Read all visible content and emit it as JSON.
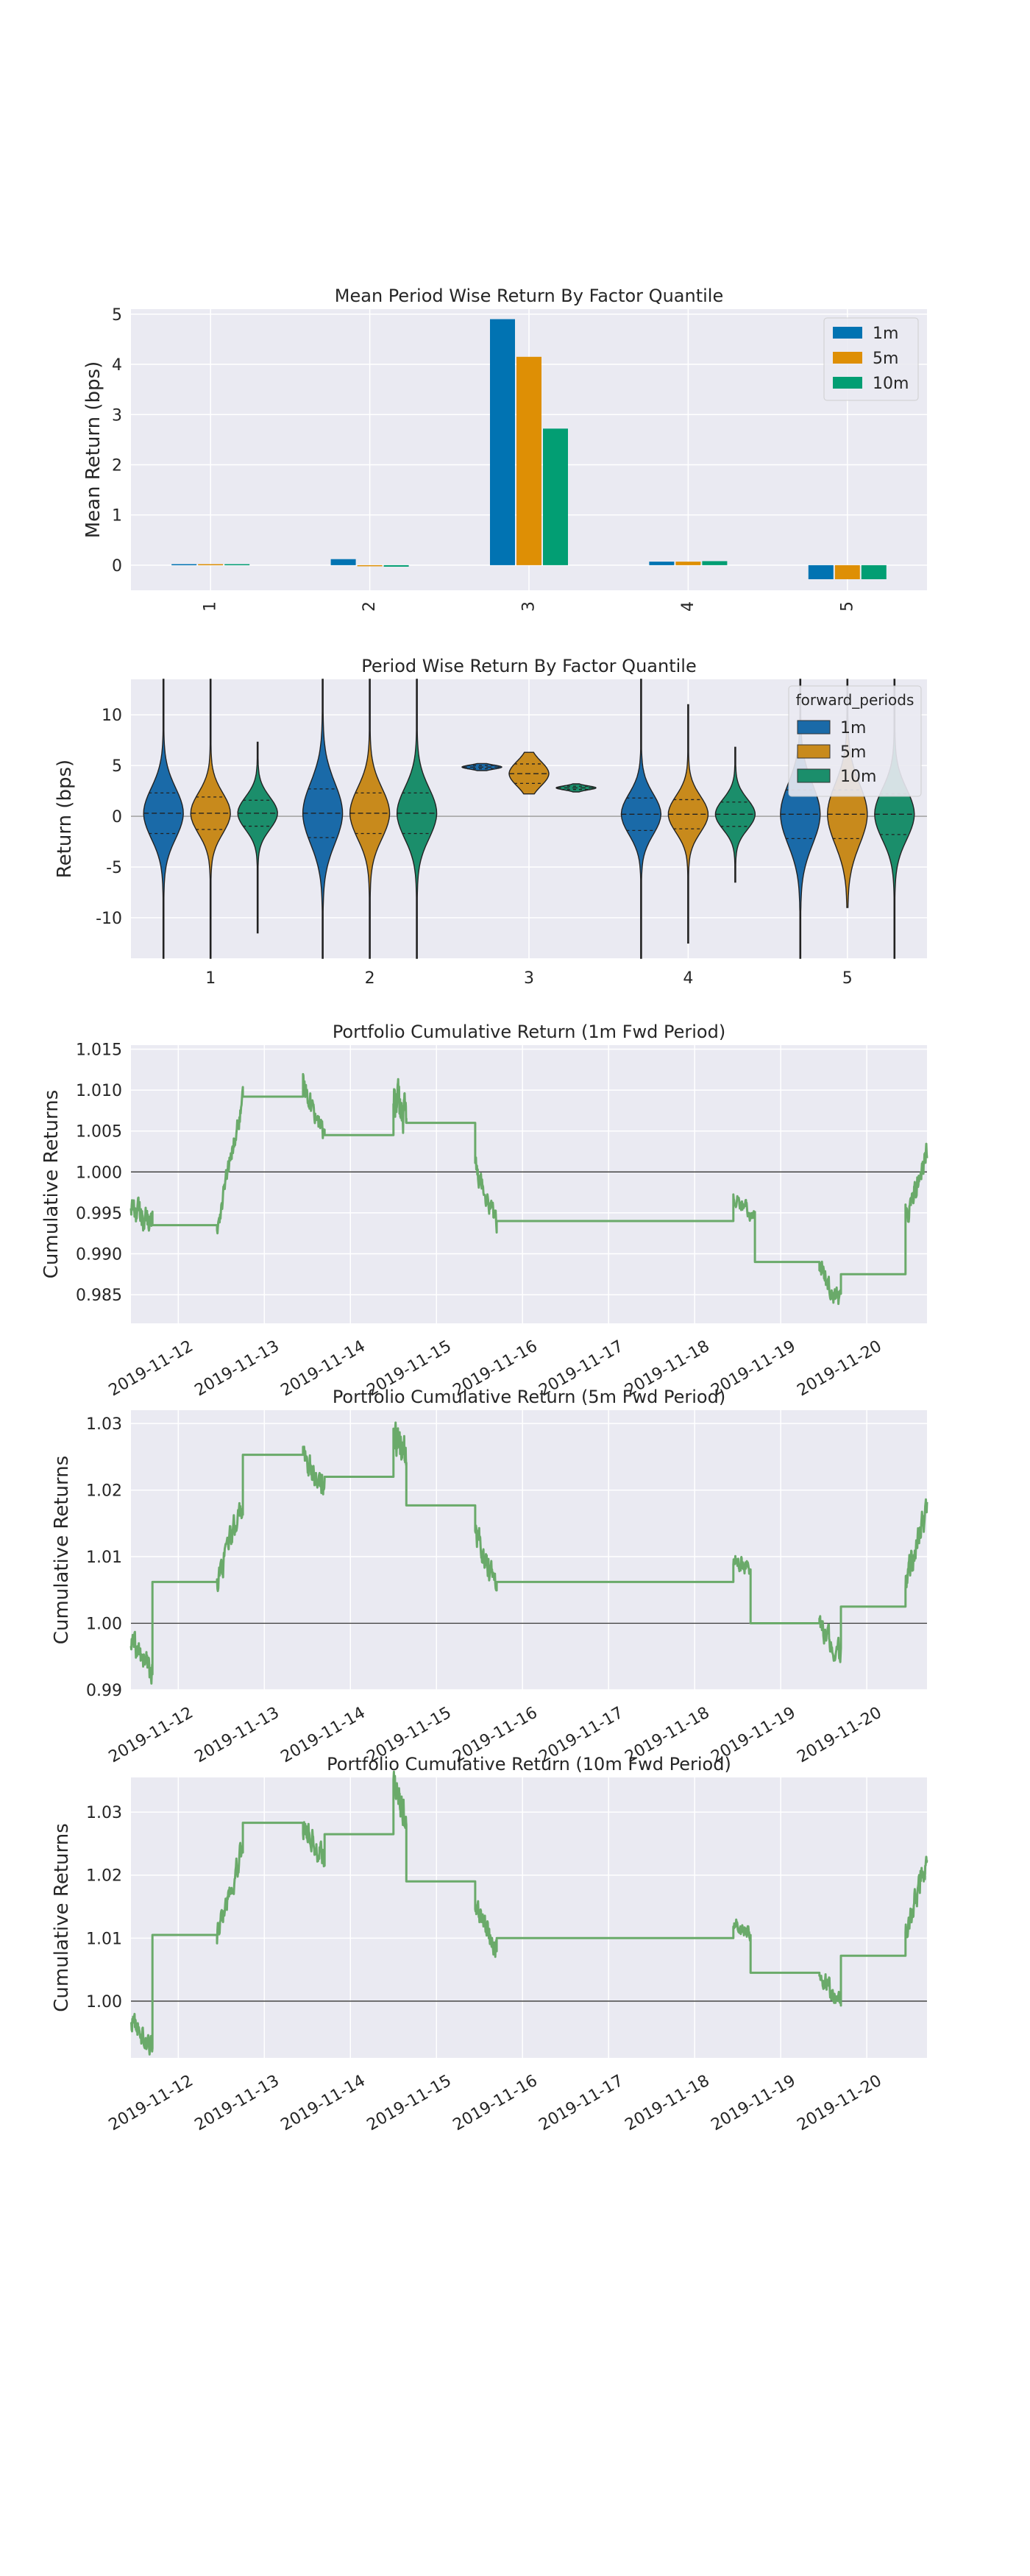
{
  "figure_bg": "#ffffff",
  "axes_bg": "#eaeaf2",
  "grid_color": "#ffffff",
  "text_color": "#262626",
  "chart_data": [
    {
      "type": "bar",
      "title": "Mean Period Wise Return By Factor Quantile",
      "xlabel": "",
      "ylabel": "Mean Return (bps)",
      "categories": [
        "1",
        "2",
        "3",
        "4",
        "5"
      ],
      "ylim": [
        -0.5,
        5.1
      ],
      "yticks": [
        0,
        1,
        2,
        3,
        4,
        5
      ],
      "tick_rotation": 90,
      "legend_position": "top-right",
      "series": [
        {
          "name": "1m",
          "color": "#0173b2",
          "values": [
            0.02,
            0.12,
            4.9,
            0.07,
            -0.28
          ]
        },
        {
          "name": "5m",
          "color": "#de8f05",
          "values": [
            0.02,
            0.0,
            4.15,
            0.07,
            -0.28
          ]
        },
        {
          "name": "10m",
          "color": "#029e73",
          "values": [
            0.02,
            -0.03,
            2.72,
            0.08,
            -0.28
          ]
        }
      ]
    },
    {
      "type": "violin",
      "title": "Period Wise Return By Factor Quantile",
      "xlabel": "",
      "ylabel": "Return (bps)",
      "categories": [
        "1",
        "2",
        "3",
        "4",
        "5"
      ],
      "ylim": [
        -14,
        13.5
      ],
      "yticks": [
        -10,
        -5,
        0,
        5,
        10
      ],
      "legend_title": "forward_periods",
      "legend_position": "top-right",
      "series": [
        {
          "name": "1m",
          "color": "#1a6aa8",
          "min": [
            -14,
            -14,
            4.5,
            -14,
            -14
          ],
          "max": [
            13.5,
            13.5,
            5.2,
            13.5,
            13.5
          ],
          "center": [
            0.3,
            0.3,
            4.85,
            0.2,
            0.2
          ],
          "spread": [
            2.5,
            3.0,
            0.2,
            2.0,
            3.0
          ]
        },
        {
          "name": "5m",
          "color": "#c88a1c",
          "min": [
            -14,
            -14,
            2.2,
            -12.5,
            -9
          ],
          "max": [
            13.5,
            13.5,
            6.3,
            11,
            13.5
          ],
          "center": [
            0.3,
            0.3,
            4.2,
            0.2,
            0.2
          ],
          "spread": [
            2.0,
            2.5,
            1.2,
            1.8,
            3.0
          ]
        },
        {
          "name": "10m",
          "color": "#1b8e6b",
          "min": [
            -11.5,
            -14,
            2.4,
            -6.5,
            -14
          ],
          "max": [
            7.3,
            13.5,
            3.2,
            6.8,
            13.5
          ],
          "center": [
            0.3,
            0.3,
            2.8,
            0.2,
            0.2
          ],
          "spread": [
            1.6,
            2.5,
            0.2,
            1.5,
            2.5
          ]
        }
      ]
    },
    {
      "type": "line",
      "title": "Portfolio Cumulative Return (1m Fwd Period)",
      "xlabel": "",
      "ylabel": "Cumulative Returns",
      "line_color": "#6aaa6a",
      "baseline": 1.0,
      "xlim": [
        0,
        9.25
      ],
      "ylim": [
        0.9815,
        1.0155
      ],
      "yticks": [
        0.985,
        0.99,
        0.995,
        1.0,
        1.005,
        1.01,
        1.015
      ],
      "ytick_labels": [
        "0.985",
        "0.990",
        "0.995",
        "1.000",
        "1.005",
        "1.010",
        "1.015"
      ],
      "xtick_positions": [
        0.55,
        1.55,
        2.55,
        3.55,
        4.55,
        5.55,
        6.55,
        7.55,
        8.55
      ],
      "xtick_labels": [
        "2019-11-12",
        "2019-11-13",
        "2019-11-14",
        "2019-11-15",
        "2019-11-16",
        "2019-11-17",
        "2019-11-18",
        "2019-11-19",
        "2019-11-20"
      ],
      "segments": [
        {
          "t0": 0.0,
          "t1": 0.25,
          "v0": 0.996,
          "v1": 0.9935,
          "noise": 0.0025
        },
        {
          "t0": 0.25,
          "t1": 1.0,
          "flat": 0.9935
        },
        {
          "t0": 1.0,
          "t1": 1.3,
          "v0": 0.9935,
          "v1": 1.0085,
          "noise": 0.002
        },
        {
          "t0": 1.3,
          "t1": 2.0,
          "flat": 1.0092
        },
        {
          "t0": 2.0,
          "t1": 2.25,
          "v0": 1.011,
          "v1": 1.0045,
          "noise": 0.002
        },
        {
          "t0": 2.25,
          "t1": 3.05,
          "flat": 1.0045
        },
        {
          "t0": 3.05,
          "t1": 3.2,
          "v0": 1.009,
          "v1": 1.0065,
          "noise": 0.0035
        },
        {
          "t0": 3.2,
          "t1": 4.0,
          "flat": 1.006
        },
        {
          "t0": 4.0,
          "t1": 4.25,
          "v0": 1.001,
          "v1": 0.994,
          "noise": 0.002
        },
        {
          "t0": 4.25,
          "t1": 7.0,
          "flat": 0.994
        },
        {
          "t0": 7.0,
          "t1": 7.25,
          "v0": 0.9965,
          "v1": 0.9945,
          "noise": 0.0015
        },
        {
          "t0": 7.25,
          "t1": 8.0,
          "flat": 0.989
        },
        {
          "t0": 8.0,
          "t1": 8.25,
          "v0": 0.9885,
          "v1": 0.984,
          "noise": 0.002
        },
        {
          "t0": 8.25,
          "t1": 9.0,
          "flat": 0.9875
        },
        {
          "t0": 9.0,
          "t1": 9.25,
          "v0": 0.995,
          "v1": 1.002,
          "noise": 0.0025
        }
      ]
    },
    {
      "type": "line",
      "title": "Portfolio Cumulative Return (5m Fwd Period)",
      "xlabel": "",
      "ylabel": "Cumulative Returns",
      "line_color": "#6aaa6a",
      "baseline": 1.0,
      "xlim": [
        0,
        9.25
      ],
      "ylim": [
        0.99,
        1.032
      ],
      "yticks": [
        0.99,
        1.0,
        1.01,
        1.02,
        1.03
      ],
      "ytick_labels": [
        "0.99",
        "1.00",
        "1.01",
        "1.02",
        "1.03"
      ],
      "xtick_positions": [
        0.55,
        1.55,
        2.55,
        3.55,
        4.55,
        5.55,
        6.55,
        7.55,
        8.55
      ],
      "xtick_labels": [
        "2019-11-12",
        "2019-11-13",
        "2019-11-14",
        "2019-11-15",
        "2019-11-16",
        "2019-11-17",
        "2019-11-18",
        "2019-11-19",
        "2019-11-20"
      ],
      "segments": [
        {
          "t0": 0.0,
          "t1": 0.25,
          "v0": 0.997,
          "v1": 0.9925,
          "noise": 0.003
        },
        {
          "t0": 0.25,
          "t1": 1.0,
          "flat": 1.0062
        },
        {
          "t0": 1.0,
          "t1": 1.3,
          "v0": 1.0062,
          "v1": 1.018,
          "noise": 0.003
        },
        {
          "t0": 1.3,
          "t1": 2.0,
          "flat": 1.0253
        },
        {
          "t0": 2.0,
          "t1": 2.25,
          "v0": 1.025,
          "v1": 1.02,
          "noise": 0.003
        },
        {
          "t0": 2.25,
          "t1": 3.05,
          "flat": 1.022
        },
        {
          "t0": 3.05,
          "t1": 3.2,
          "v0": 1.029,
          "v1": 1.025,
          "noise": 0.0035
        },
        {
          "t0": 3.2,
          "t1": 4.0,
          "flat": 1.0177
        },
        {
          "t0": 4.0,
          "t1": 4.25,
          "v0": 1.014,
          "v1": 1.005,
          "noise": 0.003
        },
        {
          "t0": 4.25,
          "t1": 7.0,
          "flat": 1.0062
        },
        {
          "t0": 7.0,
          "t1": 7.2,
          "v0": 1.0095,
          "v1": 1.008,
          "noise": 0.0015
        },
        {
          "t0": 7.2,
          "t1": 8.0,
          "flat": 1.0
        },
        {
          "t0": 8.0,
          "t1": 8.25,
          "v0": 1.0,
          "v1": 0.995,
          "noise": 0.0025
        },
        {
          "t0": 8.25,
          "t1": 9.0,
          "flat": 1.0025
        },
        {
          "t0": 9.0,
          "t1": 9.25,
          "v0": 1.006,
          "v1": 1.017,
          "noise": 0.003
        }
      ]
    },
    {
      "type": "line",
      "title": "Portfolio Cumulative Return (10m Fwd Period)",
      "xlabel": "",
      "ylabel": "Cumulative Returns",
      "line_color": "#6aaa6a",
      "baseline": 1.0,
      "xlim": [
        0,
        9.25
      ],
      "ylim": [
        0.991,
        1.0355
      ],
      "yticks": [
        1.0,
        1.01,
        1.02,
        1.03
      ],
      "ytick_labels": [
        "1.00",
        "1.01",
        "1.02",
        "1.03"
      ],
      "xtick_positions": [
        0.55,
        1.55,
        2.55,
        3.55,
        4.55,
        5.55,
        6.55,
        7.55,
        8.55
      ],
      "xtick_labels": [
        "2019-11-12",
        "2019-11-13",
        "2019-11-14",
        "2019-11-15",
        "2019-11-16",
        "2019-11-17",
        "2019-11-18",
        "2019-11-19",
        "2019-11-20"
      ],
      "segments": [
        {
          "t0": 0.0,
          "t1": 0.25,
          "v0": 0.997,
          "v1": 0.993,
          "noise": 0.003
        },
        {
          "t0": 0.25,
          "t1": 1.0,
          "flat": 1.0105
        },
        {
          "t0": 1.0,
          "t1": 1.3,
          "v0": 1.0105,
          "v1": 1.025,
          "noise": 0.003
        },
        {
          "t0": 1.3,
          "t1": 2.0,
          "flat": 1.0283
        },
        {
          "t0": 2.0,
          "t1": 2.25,
          "v0": 1.028,
          "v1": 1.0225,
          "noise": 0.003
        },
        {
          "t0": 2.25,
          "t1": 3.05,
          "flat": 1.0265
        },
        {
          "t0": 3.05,
          "t1": 3.2,
          "v0": 1.034,
          "v1": 1.029,
          "noise": 0.0035
        },
        {
          "t0": 3.2,
          "t1": 4.0,
          "flat": 1.019
        },
        {
          "t0": 4.0,
          "t1": 4.25,
          "v0": 1.015,
          "v1": 1.0085,
          "noise": 0.0025
        },
        {
          "t0": 4.25,
          "t1": 7.0,
          "flat": 1.01
        },
        {
          "t0": 7.0,
          "t1": 7.2,
          "v0": 1.0125,
          "v1": 1.0105,
          "noise": 0.0015
        },
        {
          "t0": 7.2,
          "t1": 8.0,
          "flat": 1.0045
        },
        {
          "t0": 8.0,
          "t1": 8.25,
          "v0": 1.0045,
          "v1": 0.999,
          "noise": 0.0025
        },
        {
          "t0": 8.25,
          "t1": 9.0,
          "flat": 1.0072
        },
        {
          "t0": 9.0,
          "t1": 9.25,
          "v0": 1.011,
          "v1": 1.022,
          "noise": 0.003
        }
      ]
    }
  ]
}
